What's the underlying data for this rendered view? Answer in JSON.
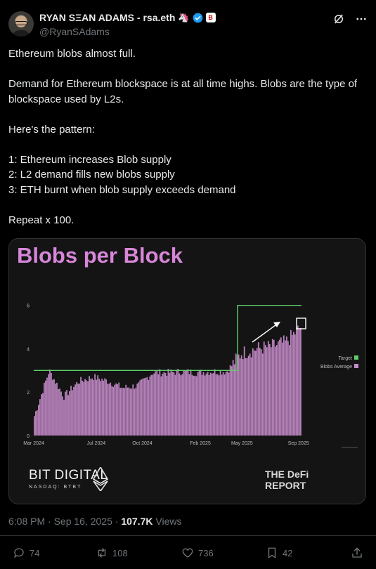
{
  "author": {
    "display_name": "RYAN SΞAN ADAMS - rsa.eth",
    "badge_emoji": "🦄",
    "affiliate_badge": "B",
    "handle": "@RyanSAdams"
  },
  "tweet": {
    "lines": [
      "Ethereum blobs almost full.",
      "",
      "Demand for Ethereum blockspace is at all time highs. Blobs are the type of blockspace used by L2s.",
      "",
      "Here's the pattern:",
      "",
      "1: Ethereum increases Blob supply",
      "2: L2 demand fills new blobs supply",
      "3: ETH burnt when blob supply exceeds demand",
      "",
      "Repeat x 100."
    ]
  },
  "chart_data": {
    "type": "bar",
    "title": "Blobs per Block",
    "x_tick_labels": [
      "Mar 2024",
      "Jul 2024",
      "Oct 2024",
      "Feb 2025",
      "May 2025",
      "Sep 2025"
    ],
    "y_tick_labels": [
      "0",
      "2",
      "4",
      "6"
    ],
    "ylim": [
      0,
      6.5
    ],
    "grid": false,
    "legend_position": "right",
    "series": [
      {
        "name": "Target",
        "kind": "step-line",
        "color": "#5fce6a",
        "points": [
          [
            "Mar 2024",
            3
          ],
          [
            "late Apr 2025",
            3
          ],
          [
            "May 2025",
            6
          ],
          [
            "Sep 2025",
            6
          ]
        ]
      },
      {
        "name": "Blobs Average",
        "kind": "bar",
        "color": "#c48bc9",
        "keypoints": [
          [
            "Mar 2024",
            0.9
          ],
          [
            "Apr 2024",
            3.0
          ],
          [
            "May 2024",
            1.8
          ],
          [
            "Jun 2024",
            2.5
          ],
          [
            "Jul 2024",
            2.7
          ],
          [
            "Aug 2024",
            2.5
          ],
          [
            "Sep 2024",
            2.2
          ],
          [
            "Oct 2024",
            2.3
          ],
          [
            "Nov 2024",
            2.9
          ],
          [
            "Dec 2024",
            2.9
          ],
          [
            "Jan 2025",
            2.95
          ],
          [
            "Feb 2025",
            2.9
          ],
          [
            "Mar 2025",
            2.95
          ],
          [
            "Apr 2025",
            2.95
          ],
          [
            "May 2025",
            3.8
          ],
          [
            "Jun 2025",
            4.0
          ],
          [
            "Jul 2025",
            4.1
          ],
          [
            "Aug 2025",
            4.3
          ],
          [
            "Sep 2025",
            5.0
          ]
        ]
      }
    ]
  },
  "logos": {
    "bit_digital": "BIT DIGITAL",
    "bit_digital_sub": "NASDAQ: BTBT",
    "defi_report_1": "THE DeFi",
    "defi_report_2": "REPORT"
  },
  "meta": {
    "time": "6:08 PM · Sep 16, 2025 ·",
    "views_count": "107.7K",
    "views_label": "Views"
  },
  "actions": {
    "replies": "74",
    "reposts": "108",
    "likes": "736",
    "bookmarks": "42"
  },
  "colors": {
    "background": "#000000",
    "text": "#e7e9ea",
    "muted": "#71767b",
    "verified": "#1d9bf0",
    "chart_title": "#d786d8"
  }
}
